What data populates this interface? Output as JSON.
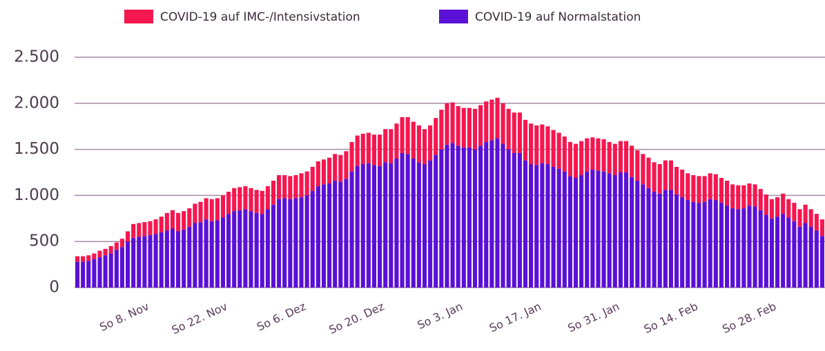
{
  "chart_data": {
    "type": "stacked_bar",
    "legend": "top",
    "grid": true,
    "categories": [
      null,
      null,
      null,
      null,
      null,
      null,
      null,
      null,
      null,
      null,
      "So 8. Nov",
      null,
      null,
      null,
      null,
      null,
      null,
      null,
      null,
      null,
      null,
      null,
      null,
      null,
      "So 22. Nov",
      null,
      null,
      null,
      null,
      null,
      null,
      null,
      null,
      null,
      null,
      null,
      null,
      null,
      "So 6. Dez",
      null,
      null,
      null,
      null,
      null,
      null,
      null,
      null,
      null,
      null,
      null,
      null,
      null,
      "So 20. Dez",
      null,
      null,
      null,
      null,
      null,
      null,
      null,
      null,
      null,
      null,
      null,
      null,
      null,
      "So 3. Jan",
      null,
      null,
      null,
      null,
      null,
      null,
      null,
      null,
      null,
      null,
      null,
      null,
      null,
      "So 17. Jan",
      null,
      null,
      null,
      null,
      null,
      null,
      null,
      null,
      null,
      null,
      null,
      null,
      null,
      "So 31. Jan",
      null,
      null,
      null,
      null,
      null,
      null,
      null,
      null,
      null,
      null,
      null,
      null,
      null,
      "So 14. Feb",
      null,
      null,
      null,
      null,
      null,
      null,
      null,
      null,
      null,
      null,
      null,
      null,
      null,
      "So 28. Feb",
      null,
      null,
      null,
      null,
      null,
      null,
      null,
      null,
      null,
      null,
      null
    ],
    "series": [
      {
        "name": "COVID-19 auf IMC-/Intensivstation",
        "color": "#f5174f",
        "values": [
          60,
          60,
          60,
          60,
          70,
          70,
          80,
          80,
          90,
          110,
          150,
          150,
          150,
          150,
          160,
          170,
          190,
          200,
          200,
          200,
          200,
          210,
          220,
          230,
          240,
          240,
          240,
          240,
          250,
          250,
          250,
          250,
          250,
          250,
          250,
          260,
          260,
          250,
          250,
          250,
          260,
          260,
          260,
          270,
          270,
          280,
          290,
          290,
          300,
          320,
          330,
          330,
          330,
          330,
          340,
          360,
          370,
          380,
          390,
          400,
          400,
          400,
          380,
          380,
          400,
          430,
          450,
          440,
          430,
          430,
          430,
          440,
          440,
          440,
          440,
          440,
          440,
          440,
          440,
          440,
          440,
          440,
          430,
          420,
          410,
          400,
          390,
          380,
          370,
          370,
          370,
          360,
          350,
          350,
          350,
          340,
          340,
          340,
          340,
          340,
          330,
          330,
          330,
          320,
          320,
          320,
          320,
          300,
          300,
          290,
          290,
          290,
          280,
          280,
          280,
          270,
          270,
          260,
          260,
          250,
          240,
          240,
          230,
          220,
          210,
          210,
          220,
          200,
          200,
          190,
          200,
          190,
          180,
          180
        ]
      },
      {
        "name": "COVID-19 auf Normalstation",
        "color": "#5a10d6",
        "values": [
          280,
          280,
          290,
          310,
          330,
          350,
          370,
          410,
          440,
          500,
          540,
          550,
          560,
          570,
          580,
          600,
          620,
          640,
          610,
          630,
          660,
          700,
          710,
          740,
          720,
          730,
          760,
          800,
          830,
          840,
          850,
          830,
          810,
          800,
          850,
          900,
          960,
          970,
          960,
          970,
          980,
          1000,
          1050,
          1100,
          1120,
          1130,
          1160,
          1150,
          1180,
          1260,
          1320,
          1340,
          1350,
          1330,
          1320,
          1360,
          1350,
          1400,
          1460,
          1450,
          1400,
          1360,
          1340,
          1380,
          1440,
          1500,
          1550,
          1570,
          1540,
          1520,
          1520,
          1500,
          1540,
          1580,
          1600,
          1620,
          1560,
          1500,
          1460,
          1460,
          1380,
          1340,
          1330,
          1350,
          1340,
          1310,
          1290,
          1260,
          1210,
          1190,
          1220,
          1260,
          1280,
          1270,
          1260,
          1240,
          1220,
          1250,
          1250,
          1200,
          1160,
          1120,
          1080,
          1040,
          1020,
          1060,
          1060,
          1010,
          980,
          950,
          930,
          920,
          930,
          960,
          950,
          920,
          890,
          860,
          850,
          860,
          890,
          880,
          840,
          790,
          750,
          770,
          800,
          760,
          720,
          660,
          700,
          660,
          620,
          560
        ]
      }
    ],
    "ylim": [
      0,
      2500
    ],
    "yticks": [
      0,
      500,
      {
        "value": 1000,
        "label": "1.000"
      },
      {
        "value": 1500,
        "label": "1.500"
      },
      {
        "value": 2000,
        "label": "2.000"
      },
      {
        "value": 2500,
        "label": "2.500"
      }
    ]
  }
}
